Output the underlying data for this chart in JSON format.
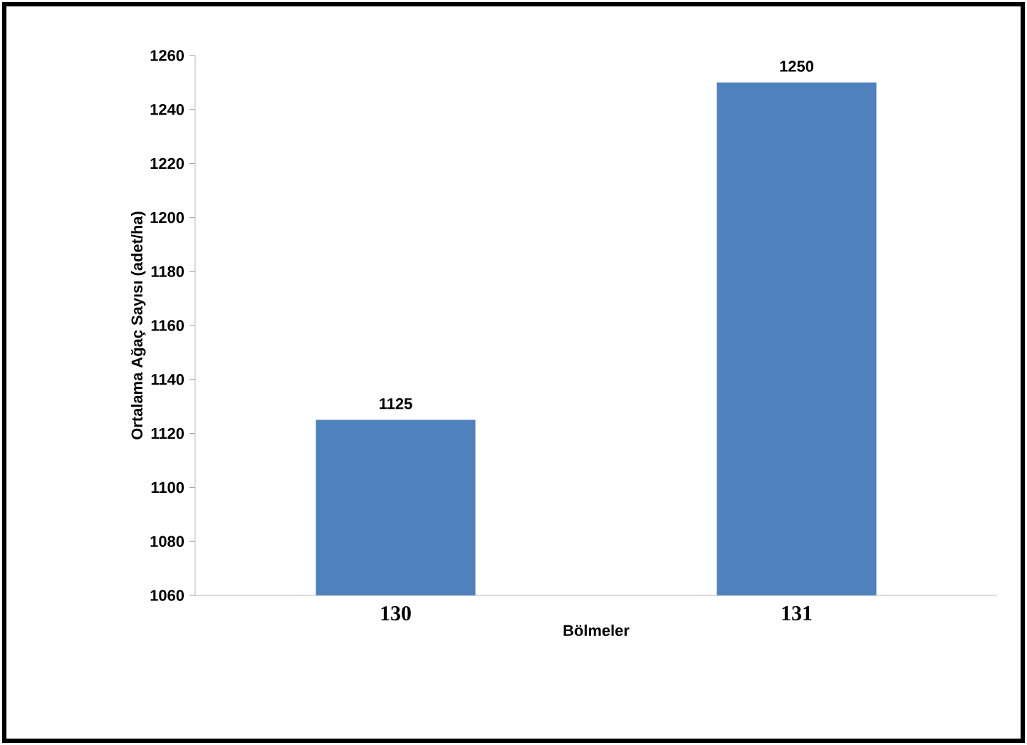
{
  "chart_data": {
    "type": "bar",
    "xlabel": "Bölmeler",
    "ylabel": "Ortalama Ağaç Sayısı (adet/ha)",
    "categories": [
      "130",
      "131"
    ],
    "values": [
      1125,
      1250
    ],
    "color": "#4f81bd",
    "ylim": [
      1060,
      1260
    ],
    "yticks": [
      1060,
      1080,
      1100,
      1120,
      1140,
      1160,
      1180,
      1200,
      1220,
      1240,
      1260
    ],
    "data_labels": true
  }
}
